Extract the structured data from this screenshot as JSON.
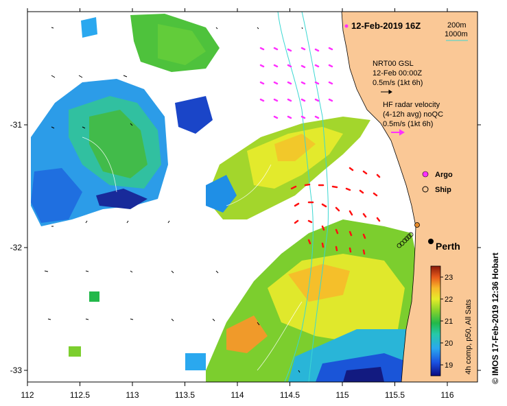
{
  "map": {
    "title": "12-Feb-2019 16Z",
    "depth_legend": {
      "contour_1": "200m",
      "contour_2": "1000m",
      "contour_color": "#39d7d2"
    },
    "wind_legend": {
      "line1": "NRT00 GSL",
      "line2": "12-Feb 00:00Z",
      "line3": "0.5m/s (1kt 6h)"
    },
    "hf_legend": {
      "line1": "HF radar velocity",
      "line2": "(4-12h avg) noQC",
      "line3": "0.5m/s (1kt 6h)"
    },
    "markers": {
      "argo": "Argo",
      "ship": "Ship"
    },
    "city": "Perth",
    "side_label": "© IMOS 17-Feb-2019 12:36 Hobart",
    "colors": {
      "land": "#fac896",
      "hf_vectors_1": "#ff30ff",
      "hf_vectors_2": "#ff1010",
      "wind_vectors": "#000000"
    },
    "x_axis": {
      "labels": [
        "112",
        "112.5",
        "113",
        "113.5",
        "114",
        "114.5",
        "115",
        "115.5",
        "116"
      ]
    },
    "y_axis": {
      "labels": [
        "-31",
        "-32",
        "-33"
      ]
    },
    "colorbar": {
      "title": "4h comp, p50, All Sats",
      "labels": [
        "19",
        "20",
        "21",
        "22",
        "23"
      ],
      "range": [
        18.7,
        23.6
      ]
    }
  }
}
